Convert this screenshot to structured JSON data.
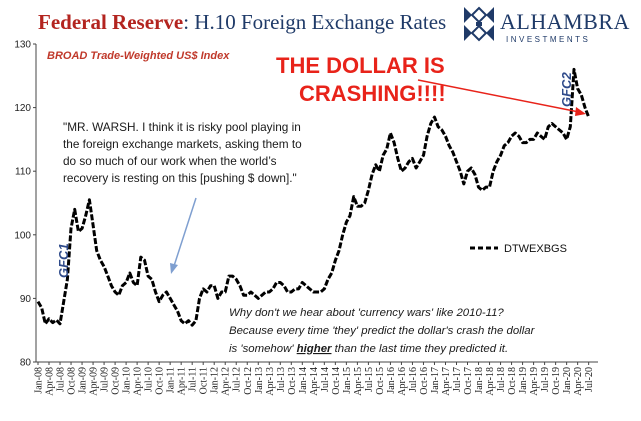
{
  "header": {
    "title_main": "Federal Reserve",
    "title_sub": ": H.10 Foreign Exchange Rates",
    "logo_name": "ALHAMBRA",
    "logo_tagline": "INVESTMENTS"
  },
  "colors": {
    "title_red": "#b3241f",
    "navy": "#1f3a68",
    "annotation_red": "#e8231a",
    "series": "#000000",
    "arrow_blue": "#7f9fd0"
  },
  "annotations": {
    "subtitle": "BROAD Trade-Weighted US$ Index",
    "headline_line1": "THE DOLLAR IS",
    "headline_line2": "CRASHING!!!!",
    "quote_lines": [
      "\"MR. WARSH. I think it is risky pool playing in",
      "the foreign exchange markets, asking them to",
      "do so much of our work when the world’s",
      "recovery is resting on this [pushing $ down].\""
    ],
    "gfc1": "GFC1",
    "gfc2": "GFC2",
    "bottom_line1": "Why don't we hear about 'currency wars' like 2010-11?",
    "bottom_line2": "Because every time 'they' predict the dollar's crash the dollar",
    "bottom_line3_a": "is 'somehow' ",
    "bottom_line3_b": "higher",
    "bottom_line3_c": " than the last time they predicted it."
  },
  "chart_data": {
    "type": "line",
    "legend": {
      "entries": [
        "DTWEXBGS"
      ],
      "placement": "center-right",
      "style": "dashed"
    },
    "ylim": [
      80,
      130
    ],
    "y_ticks": [
      80,
      90,
      100,
      110,
      120,
      130
    ],
    "grid": false,
    "x_tick_labels": [
      "Jan-08",
      "Apr-08",
      "Jul-08",
      "Oct-08",
      "Jan-09",
      "Apr-09",
      "Jul-09",
      "Oct-09",
      "Jan-10",
      "Apr-10",
      "Jul-10",
      "Oct-10",
      "Jan-11",
      "Apr-11",
      "Jul-11",
      "Oct-11",
      "Jan-12",
      "Apr-12",
      "Jul-12",
      "Oct-12",
      "Jan-13",
      "Apr-13",
      "Jul-13",
      "Oct-13",
      "Jan-14",
      "Apr-14",
      "Jul-14",
      "Oct-14",
      "Jan-15",
      "Apr-15",
      "Jul-15",
      "Oct-15",
      "Jan-16",
      "Apr-16",
      "Jul-16",
      "Oct-16",
      "Jan-17",
      "Apr-17",
      "Jul-17",
      "Oct-17",
      "Jan-18",
      "Apr-18",
      "Jul-18",
      "Oct-18",
      "Jan-19",
      "Apr-19",
      "Jul-19",
      "Oct-19",
      "Jan-20",
      "Apr-20",
      "Jul-20"
    ],
    "series": [
      {
        "name": "DTWEXBGS",
        "points": [
          [
            "Jan-08",
            89.5
          ],
          [
            "Feb-08",
            88.5
          ],
          [
            "Mar-08",
            86.0
          ],
          [
            "Apr-08",
            86.8
          ],
          [
            "May-08",
            86.2
          ],
          [
            "Jun-08",
            86.6
          ],
          [
            "Jul-08",
            86.0
          ],
          [
            "Aug-08",
            89.5
          ],
          [
            "Sep-08",
            93.0
          ],
          [
            "Oct-08",
            101.0
          ],
          [
            "Nov-08",
            104.0
          ],
          [
            "Dec-08",
            100.5
          ],
          [
            "Jan-09",
            101.0
          ],
          [
            "Feb-09",
            103.0
          ],
          [
            "Mar-09",
            105.5
          ],
          [
            "Apr-09",
            101.5
          ],
          [
            "May-09",
            97.5
          ],
          [
            "Jun-09",
            96.0
          ],
          [
            "Jul-09",
            95.0
          ],
          [
            "Aug-09",
            93.5
          ],
          [
            "Sep-09",
            92.0
          ],
          [
            "Oct-09",
            91.0
          ],
          [
            "Nov-09",
            90.5
          ],
          [
            "Dec-09",
            92.0
          ],
          [
            "Jan-10",
            92.5
          ],
          [
            "Feb-10",
            94.0
          ],
          [
            "Mar-10",
            92.5
          ],
          [
            "Apr-10",
            92.0
          ],
          [
            "May-10",
            96.5
          ],
          [
            "Jun-10",
            96.0
          ],
          [
            "Jul-10",
            93.5
          ],
          [
            "Aug-10",
            93.0
          ],
          [
            "Sep-10",
            91.0
          ],
          [
            "Oct-10",
            89.5
          ],
          [
            "Nov-10",
            90.5
          ],
          [
            "Dec-10",
            91.0
          ],
          [
            "Jan-11",
            90.0
          ],
          [
            "Feb-11",
            89.0
          ],
          [
            "Mar-11",
            88.0
          ],
          [
            "Apr-11",
            86.5
          ],
          [
            "May-11",
            86.0
          ],
          [
            "Jun-11",
            86.5
          ],
          [
            "Jul-11",
            85.8
          ],
          [
            "Aug-11",
            86.5
          ],
          [
            "Sep-11",
            90.0
          ],
          [
            "Oct-11",
            91.5
          ],
          [
            "Nov-11",
            91.0
          ],
          [
            "Dec-11",
            92.0
          ],
          [
            "Jan-12",
            92.0
          ],
          [
            "Feb-12",
            90.0
          ],
          [
            "Mar-12",
            91.0
          ],
          [
            "Apr-12",
            91.0
          ],
          [
            "May-12",
            93.5
          ],
          [
            "Jun-12",
            93.5
          ],
          [
            "Jul-12",
            93.0
          ],
          [
            "Aug-12",
            92.0
          ],
          [
            "Sep-12",
            90.5
          ],
          [
            "Oct-12",
            90.5
          ],
          [
            "Nov-12",
            91.0
          ],
          [
            "Dec-12",
            90.5
          ],
          [
            "Jan-13",
            90.0
          ],
          [
            "Feb-13",
            90.5
          ],
          [
            "Mar-13",
            91.0
          ],
          [
            "Apr-13",
            91.0
          ],
          [
            "May-13",
            91.5
          ],
          [
            "Jun-13",
            92.5
          ],
          [
            "Jul-13",
            92.5
          ],
          [
            "Aug-13",
            92.0
          ],
          [
            "Sep-13",
            91.0
          ],
          [
            "Oct-13",
            91.0
          ],
          [
            "Nov-13",
            91.5
          ],
          [
            "Dec-13",
            91.5
          ],
          [
            "Jan-14",
            92.5
          ],
          [
            "Feb-14",
            92.0
          ],
          [
            "Mar-14",
            91.5
          ],
          [
            "Apr-14",
            91.0
          ],
          [
            "May-14",
            91.0
          ],
          [
            "Jun-14",
            91.0
          ],
          [
            "Jul-14",
            91.5
          ],
          [
            "Aug-14",
            93.0
          ],
          [
            "Sep-14",
            94.0
          ],
          [
            "Oct-14",
            96.0
          ],
          [
            "Nov-14",
            97.5
          ],
          [
            "Dec-14",
            100.0
          ],
          [
            "Jan-15",
            102.0
          ],
          [
            "Feb-15",
            103.0
          ],
          [
            "Mar-15",
            106.0
          ],
          [
            "Apr-15",
            104.5
          ],
          [
            "May-15",
            104.5
          ],
          [
            "Jun-15",
            105.0
          ],
          [
            "Jul-15",
            107.0
          ],
          [
            "Aug-15",
            109.5
          ],
          [
            "Sep-15",
            111.0
          ],
          [
            "Oct-15",
            110.0
          ],
          [
            "Nov-15",
            112.5
          ],
          [
            "Dec-15",
            113.5
          ],
          [
            "Jan-16",
            116.0
          ],
          [
            "Feb-16",
            114.5
          ],
          [
            "Mar-16",
            112.0
          ],
          [
            "Apr-16",
            110.0
          ],
          [
            "May-16",
            110.5
          ],
          [
            "Jun-16",
            111.5
          ],
          [
            "Jul-16",
            112.0
          ],
          [
            "Aug-16",
            110.5
          ],
          [
            "Sep-16",
            111.5
          ],
          [
            "Oct-16",
            112.5
          ],
          [
            "Nov-16",
            115.5
          ],
          [
            "Dec-16",
            117.5
          ],
          [
            "Jan-17",
            118.5
          ],
          [
            "Feb-17",
            117.0
          ],
          [
            "Mar-17",
            116.5
          ],
          [
            "Apr-17",
            115.5
          ],
          [
            "May-17",
            114.0
          ],
          [
            "Jun-17",
            113.0
          ],
          [
            "Jul-17",
            111.5
          ],
          [
            "Aug-17",
            110.0
          ],
          [
            "Sep-17",
            108.0
          ],
          [
            "Oct-17",
            110.0
          ],
          [
            "Nov-17",
            110.5
          ],
          [
            "Dec-17",
            109.5
          ],
          [
            "Jan-18",
            107.5
          ],
          [
            "Feb-18",
            107.0
          ],
          [
            "Mar-18",
            107.5
          ],
          [
            "Apr-18",
            107.5
          ],
          [
            "May-18",
            110.0
          ],
          [
            "Jun-18",
            111.5
          ],
          [
            "Jul-18",
            112.5
          ],
          [
            "Aug-18",
            114.0
          ],
          [
            "Sep-18",
            114.5
          ],
          [
            "Oct-18",
            115.5
          ],
          [
            "Nov-18",
            116.0
          ],
          [
            "Dec-18",
            115.5
          ],
          [
            "Jan-19",
            114.5
          ],
          [
            "Feb-19",
            114.5
          ],
          [
            "Mar-19",
            115.0
          ],
          [
            "Apr-19",
            115.0
          ],
          [
            "May-19",
            116.0
          ],
          [
            "Jun-19",
            115.5
          ],
          [
            "Jul-19",
            115.0
          ],
          [
            "Aug-19",
            117.0
          ],
          [
            "Sep-19",
            117.5
          ],
          [
            "Oct-19",
            117.0
          ],
          [
            "Nov-19",
            116.5
          ],
          [
            "Dec-19",
            116.0
          ],
          [
            "Jan-20",
            115.0
          ],
          [
            "Feb-20",
            117.0
          ],
          [
            "Mar-20",
            126.0
          ],
          [
            "Apr-20",
            123.0
          ],
          [
            "May-20",
            122.0
          ],
          [
            "Jun-20",
            120.0
          ],
          [
            "Jul-20",
            118.5
          ]
        ]
      }
    ]
  }
}
